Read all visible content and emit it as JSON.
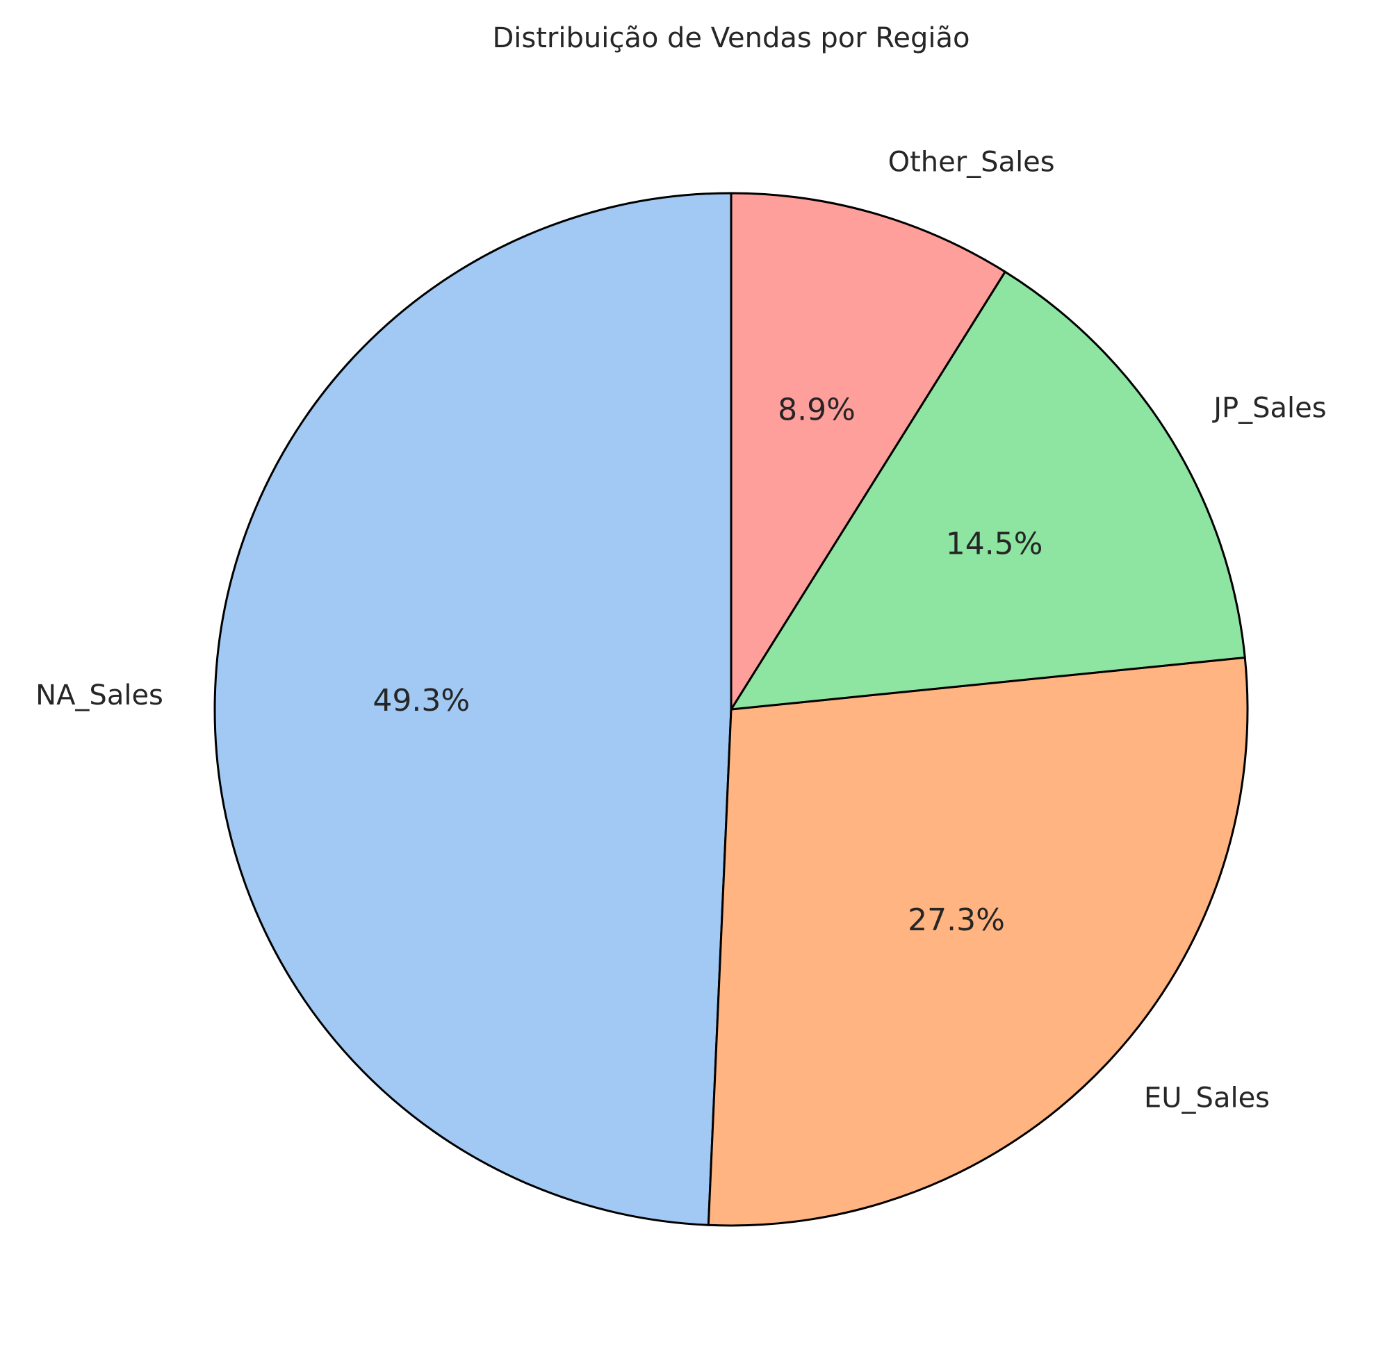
{
  "chart_data": {
    "type": "pie",
    "title": "Distribuição de Vendas por Região",
    "categories": [
      "NA_Sales",
      "EU_Sales",
      "JP_Sales",
      "Other_Sales"
    ],
    "values": [
      49.3,
      27.3,
      14.5,
      8.9
    ],
    "value_labels": [
      "49.3%",
      "27.3%",
      "14.5%",
      "8.9%"
    ],
    "colors": [
      "#a1c9f4",
      "#ffb482",
      "#8de5a1",
      "#ff9f9b"
    ],
    "edge_color": "#000000",
    "start": "top",
    "direction": "counterclockwise",
    "legend": "none"
  }
}
